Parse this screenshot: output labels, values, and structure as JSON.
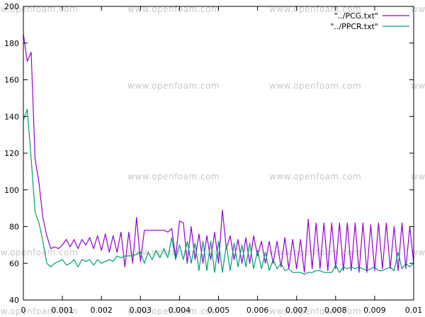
{
  "chart_data": {
    "type": "line",
    "title": "",
    "xlabel": "",
    "ylabel": "",
    "xlim": [
      0,
      0.01
    ],
    "ylim": [
      40,
      200
    ],
    "x_ticks": [
      "0",
      "0.001",
      "0.002",
      "0.003",
      "0.004",
      "0.005",
      "0.006",
      "0.007",
      "0.008",
      "0.009",
      "0.01"
    ],
    "y_ticks": [
      "40",
      "60",
      "80",
      "100",
      "120",
      "140",
      "160",
      "180",
      "200"
    ],
    "grid": false,
    "legend": "top-right",
    "watermark": "www.openfoam.com",
    "series": [
      {
        "name": "\"../PCG.txt\"",
        "color": "#9400d3",
        "x": [
          0,
          0.0001,
          0.0002,
          0.0003,
          0.0004,
          0.0005,
          0.0006,
          0.0007,
          0.0008,
          0.0009,
          0.001,
          0.0011,
          0.0012,
          0.0013,
          0.0014,
          0.0015,
          0.0016,
          0.0017,
          0.0018,
          0.0019,
          0.002,
          0.0021,
          0.0022,
          0.0023,
          0.0024,
          0.0025,
          0.0026,
          0.0027,
          0.0028,
          0.0029,
          0.003,
          0.0031,
          0.0032,
          0.0033,
          0.0034,
          0.0035,
          0.0036,
          0.0037,
          0.0038,
          0.0039,
          0.004,
          0.0041,
          0.0042,
          0.0043,
          0.0044,
          0.0045,
          0.0046,
          0.0047,
          0.0048,
          0.0049,
          0.005,
          0.0051,
          0.0052,
          0.0053,
          0.0054,
          0.0055,
          0.0056,
          0.0057,
          0.0058,
          0.0059,
          0.006,
          0.0061,
          0.0062,
          0.0063,
          0.0064,
          0.0065,
          0.0066,
          0.0067,
          0.0068,
          0.0069,
          0.007,
          0.0071,
          0.0072,
          0.0073,
          0.0074,
          0.0075,
          0.0076,
          0.0077,
          0.0078,
          0.0079,
          0.008,
          0.0081,
          0.0082,
          0.0083,
          0.0084,
          0.0085,
          0.0086,
          0.0087,
          0.0088,
          0.0089,
          0.009,
          0.0091,
          0.0092,
          0.0093,
          0.0094,
          0.0095,
          0.0096,
          0.0097,
          0.0098,
          0.0099,
          0.01
        ],
        "values": [
          185,
          170,
          175,
          117,
          104,
          85,
          75,
          68,
          69,
          68,
          70,
          73,
          69,
          73,
          68,
          73,
          70,
          74,
          68,
          75,
          67,
          76,
          66,
          75,
          66,
          77,
          58,
          77,
          60,
          85,
          61,
          78,
          78,
          78,
          78,
          78,
          78,
          77,
          79,
          63,
          83,
          82,
          60,
          80,
          62,
          76,
          60,
          75,
          62,
          77,
          60,
          89,
          68,
          75,
          62,
          73,
          60,
          74,
          60,
          75,
          64,
          72,
          60,
          72,
          60,
          72,
          58,
          74,
          57,
          73,
          57,
          73,
          55,
          84,
          57,
          82,
          57,
          82,
          56,
          82,
          57,
          82,
          56,
          82,
          56,
          82,
          55,
          82,
          55,
          81,
          56,
          82,
          57,
          82,
          57,
          80,
          56,
          82,
          57,
          80,
          60
        ]
      },
      {
        "name": "\"../PPCR.txt\"",
        "color": "#009e73",
        "x": [
          0,
          0.0001,
          0.0002,
          0.0003,
          0.0004,
          0.0005,
          0.0006,
          0.0007,
          0.0008,
          0.0009,
          0.001,
          0.0011,
          0.0012,
          0.0013,
          0.0014,
          0.0015,
          0.0016,
          0.0017,
          0.0018,
          0.0019,
          0.002,
          0.0021,
          0.0022,
          0.0023,
          0.0024,
          0.0025,
          0.0026,
          0.0027,
          0.0028,
          0.0029,
          0.003,
          0.0031,
          0.0032,
          0.0033,
          0.0034,
          0.0035,
          0.0036,
          0.0037,
          0.0038,
          0.0039,
          0.004,
          0.0041,
          0.0042,
          0.0043,
          0.0044,
          0.0045,
          0.0046,
          0.0047,
          0.0048,
          0.0049,
          0.005,
          0.0051,
          0.0052,
          0.0053,
          0.0054,
          0.0055,
          0.0056,
          0.0057,
          0.0058,
          0.0059,
          0.006,
          0.0061,
          0.0062,
          0.0063,
          0.0064,
          0.0065,
          0.0066,
          0.0067,
          0.0068,
          0.0069,
          0.007,
          0.0071,
          0.0072,
          0.0073,
          0.0074,
          0.0075,
          0.0076,
          0.0077,
          0.0078,
          0.0079,
          0.008,
          0.0081,
          0.0082,
          0.0083,
          0.0084,
          0.0085,
          0.0086,
          0.0087,
          0.0088,
          0.0089,
          0.009,
          0.0091,
          0.0092,
          0.0093,
          0.0094,
          0.0095,
          0.0096,
          0.0097,
          0.0098,
          0.0099,
          0.01
        ],
        "values": [
          138,
          144,
          117,
          88,
          82,
          72,
          60,
          58,
          60,
          61,
          62,
          59,
          60,
          62,
          58,
          62,
          61,
          62,
          59,
          62,
          60,
          61,
          62,
          61,
          64,
          63,
          64,
          64,
          64,
          65,
          66,
          60,
          66,
          62,
          67,
          63,
          68,
          63,
          74,
          62,
          70,
          62,
          72,
          60,
          71,
          56,
          72,
          56,
          72,
          55,
          72,
          55,
          70,
          56,
          71,
          58,
          70,
          58,
          71,
          57,
          67,
          57,
          66,
          56,
          62,
          57,
          60,
          56,
          57,
          55,
          55,
          55,
          54,
          55,
          55,
          56,
          56,
          55,
          55,
          55,
          59,
          55,
          58,
          57,
          58,
          57,
          58,
          57,
          56,
          57,
          58,
          56,
          56,
          57,
          58,
          56,
          66,
          57,
          60,
          58,
          60
        ]
      }
    ]
  }
}
